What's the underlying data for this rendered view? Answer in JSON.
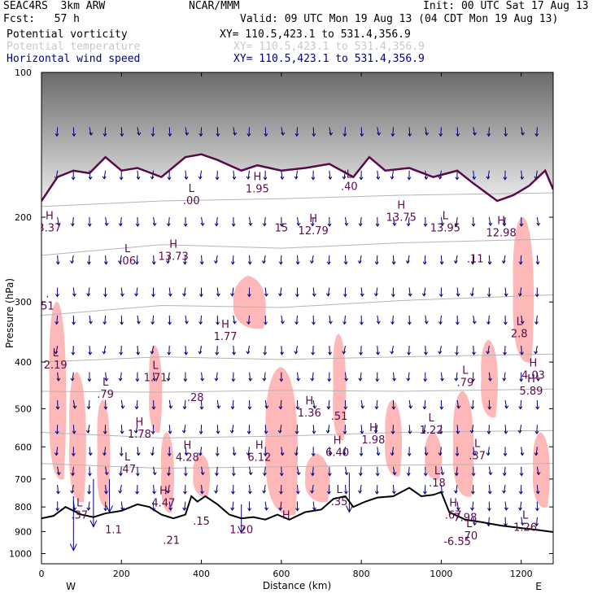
{
  "header": {
    "model": "SEAC4RS  3km ARW",
    "org": "NCAR/MMM",
    "init": "Init: 00 UTC Sat 17 Aug 13",
    "fcst": "Fcst:   57 h",
    "valid": "Valid: 09 UTC Mon 19 Aug 13 (04 CDT Mon 19 Aug 13)",
    "field1": "Potential vorticity",
    "field2": "Potential temperature",
    "field3": "Horizontal wind speed",
    "xy1": "XY= 110.5,423.1 to 531.4,356.9",
    "xy2": "XY= 110.5,423.1 to 531.4,356.9",
    "xy3": "XY= 110.5,423.1 to 531.4,356.9"
  },
  "colors": {
    "pv_fill": "#ffb8b8",
    "pv_contour": "#5a0a4a",
    "theta": "#b4b4b4",
    "wind": "#000080",
    "terrain": "#000000"
  },
  "chart_data": {
    "type": "cross-section",
    "xlabel": "Distance (km)",
    "ylabel": "Pressure (hPa)",
    "xlim": [
      0,
      1280
    ],
    "ylim": [
      1050,
      100
    ],
    "y_scale": "log-pressure",
    "x_ticks": [
      0,
      200,
      400,
      600,
      800,
      1000,
      1200
    ],
    "x_tick_labels": [
      "0",
      "200",
      "400",
      "600",
      "800",
      "1000",
      "1200"
    ],
    "y_ticks": [
      100,
      200,
      300,
      400,
      500,
      600,
      700,
      800,
      900,
      1000
    ],
    "y_tick_labels": [
      "100",
      "200",
      "300",
      "400",
      "500",
      "600",
      "700",
      "800",
      "900",
      "1000"
    ],
    "end_labels": {
      "left": "W",
      "right": "E"
    },
    "terrain_surface": [
      {
        "x": 0,
        "p": 845
      },
      {
        "x": 30,
        "p": 835
      },
      {
        "x": 60,
        "p": 800
      },
      {
        "x": 80,
        "p": 815
      },
      {
        "x": 100,
        "p": 830
      },
      {
        "x": 130,
        "p": 840
      },
      {
        "x": 160,
        "p": 825
      },
      {
        "x": 200,
        "p": 815
      },
      {
        "x": 240,
        "p": 790
      },
      {
        "x": 270,
        "p": 800
      },
      {
        "x": 300,
        "p": 830
      },
      {
        "x": 330,
        "p": 845
      },
      {
        "x": 360,
        "p": 830
      },
      {
        "x": 375,
        "p": 760
      },
      {
        "x": 390,
        "p": 780
      },
      {
        "x": 410,
        "p": 760
      },
      {
        "x": 440,
        "p": 790
      },
      {
        "x": 470,
        "p": 830
      },
      {
        "x": 500,
        "p": 845
      },
      {
        "x": 530,
        "p": 840
      },
      {
        "x": 560,
        "p": 850
      },
      {
        "x": 590,
        "p": 830
      },
      {
        "x": 620,
        "p": 850
      },
      {
        "x": 660,
        "p": 820
      },
      {
        "x": 700,
        "p": 810
      },
      {
        "x": 730,
        "p": 770
      },
      {
        "x": 760,
        "p": 760
      },
      {
        "x": 780,
        "p": 800
      },
      {
        "x": 810,
        "p": 780
      },
      {
        "x": 840,
        "p": 765
      },
      {
        "x": 880,
        "p": 760
      },
      {
        "x": 920,
        "p": 730
      },
      {
        "x": 950,
        "p": 760
      },
      {
        "x": 980,
        "p": 755
      },
      {
        "x": 1000,
        "p": 745
      },
      {
        "x": 1020,
        "p": 820
      },
      {
        "x": 1060,
        "p": 850
      },
      {
        "x": 1100,
        "p": 860
      },
      {
        "x": 1150,
        "p": 875
      },
      {
        "x": 1200,
        "p": 885
      },
      {
        "x": 1240,
        "p": 893
      },
      {
        "x": 1280,
        "p": 902
      }
    ],
    "tropopause_contour": [
      {
        "x": 0,
        "p": 185
      },
      {
        "x": 40,
        "p": 165
      },
      {
        "x": 80,
        "p": 160
      },
      {
        "x": 120,
        "p": 162
      },
      {
        "x": 160,
        "p": 150
      },
      {
        "x": 200,
        "p": 160
      },
      {
        "x": 240,
        "p": 158
      },
      {
        "x": 300,
        "p": 165
      },
      {
        "x": 360,
        "p": 150
      },
      {
        "x": 400,
        "p": 148
      },
      {
        "x": 440,
        "p": 152
      },
      {
        "x": 500,
        "p": 160
      },
      {
        "x": 540,
        "p": 156
      },
      {
        "x": 600,
        "p": 160
      },
      {
        "x": 660,
        "p": 158
      },
      {
        "x": 720,
        "p": 155
      },
      {
        "x": 780,
        "p": 165
      },
      {
        "x": 820,
        "p": 150
      },
      {
        "x": 860,
        "p": 160
      },
      {
        "x": 920,
        "p": 158
      },
      {
        "x": 980,
        "p": 165
      },
      {
        "x": 1040,
        "p": 160
      },
      {
        "x": 1080,
        "p": 170
      },
      {
        "x": 1140,
        "p": 185
      },
      {
        "x": 1180,
        "p": 180
      },
      {
        "x": 1220,
        "p": 172
      },
      {
        "x": 1260,
        "p": 160
      },
      {
        "x": 1280,
        "p": 175
      }
    ],
    "theta_isentropes": [
      [
        {
          "x": 0,
          "p": 190
        },
        {
          "x": 300,
          "p": 185
        },
        {
          "x": 600,
          "p": 183
        },
        {
          "x": 900,
          "p": 180
        },
        {
          "x": 1280,
          "p": 178
        }
      ],
      [
        {
          "x": 0,
          "p": 240
        },
        {
          "x": 300,
          "p": 228
        },
        {
          "x": 600,
          "p": 232
        },
        {
          "x": 900,
          "p": 226
        },
        {
          "x": 1280,
          "p": 222
        }
      ],
      [
        {
          "x": 0,
          "p": 320
        },
        {
          "x": 300,
          "p": 305
        },
        {
          "x": 600,
          "p": 308
        },
        {
          "x": 900,
          "p": 298
        },
        {
          "x": 1280,
          "p": 290
        }
      ],
      [
        {
          "x": 0,
          "p": 400
        },
        {
          "x": 300,
          "p": 390
        },
        {
          "x": 600,
          "p": 395
        },
        {
          "x": 900,
          "p": 390
        },
        {
          "x": 1280,
          "p": 385
        }
      ],
      [
        {
          "x": 0,
          "p": 460
        },
        {
          "x": 300,
          "p": 462
        },
        {
          "x": 600,
          "p": 458
        },
        {
          "x": 900,
          "p": 460
        },
        {
          "x": 1280,
          "p": 455
        }
      ],
      [
        {
          "x": 0,
          "p": 560
        },
        {
          "x": 300,
          "p": 575
        },
        {
          "x": 600,
          "p": 570
        },
        {
          "x": 900,
          "p": 560
        },
        {
          "x": 1280,
          "p": 555
        }
      ],
      [
        {
          "x": 0,
          "p": 650
        },
        {
          "x": 300,
          "p": 665
        },
        {
          "x": 600,
          "p": 660
        },
        {
          "x": 900,
          "p": 655
        },
        {
          "x": 1280,
          "p": 650
        }
      ]
    ],
    "pv_positive_regions": [
      {
        "x0": 20,
        "x1": 60,
        "p0": 300,
        "p1": 700
      },
      {
        "x0": 70,
        "x1": 110,
        "p0": 420,
        "p1": 780
      },
      {
        "x0": 140,
        "x1": 170,
        "p0": 480,
        "p1": 800
      },
      {
        "x0": 270,
        "x1": 300,
        "p0": 370,
        "p1": 560
      },
      {
        "x0": 300,
        "x1": 330,
        "p0": 560,
        "p1": 820
      },
      {
        "x0": 480,
        "x1": 560,
        "p0": 265,
        "p1": 340
      },
      {
        "x0": 560,
        "x1": 640,
        "p0": 410,
        "p1": 830
      },
      {
        "x0": 730,
        "x1": 760,
        "p0": 350,
        "p1": 580
      },
      {
        "x0": 860,
        "x1": 900,
        "p0": 480,
        "p1": 690
      },
      {
        "x0": 1030,
        "x1": 1080,
        "p0": 460,
        "p1": 760
      },
      {
        "x0": 1100,
        "x1": 1140,
        "p0": 360,
        "p1": 520
      },
      {
        "x0": 1180,
        "x1": 1230,
        "p0": 200,
        "p1": 400
      },
      {
        "x0": 1230,
        "x1": 1270,
        "p0": 560,
        "p1": 800
      },
      {
        "x0": 380,
        "x1": 420,
        "p0": 620,
        "p1": 760
      },
      {
        "x0": 660,
        "x1": 720,
        "p0": 620,
        "p1": 780
      },
      {
        "x0": 960,
        "x1": 1000,
        "p0": 560,
        "p1": 700
      }
    ],
    "hl_labels": [
      {
        "letter": "L",
        "value": ".00",
        "x": 375,
        "p": 180
      },
      {
        "letter": "H",
        "value": "1.95",
        "x": 540,
        "p": 170
      },
      {
        "letter": "L",
        "value": ".40",
        "x": 770,
        "p": 168
      },
      {
        "letter": "H",
        "value": "13.75",
        "x": 900,
        "p": 195
      },
      {
        "letter": "L",
        "value": "13.95",
        "x": 1010,
        "p": 205
      },
      {
        "letter": "H",
        "value": "12.98",
        "x": 1150,
        "p": 210
      },
      {
        "letter": "H",
        "value": "3.37",
        "x": 20,
        "p": 205
      },
      {
        "letter": "L",
        "value": ".06",
        "x": 215,
        "p": 240
      },
      {
        "letter": "H",
        "value": "13.73",
        "x": 330,
        "p": 235
      },
      {
        "letter": "",
        "value": "15",
        "x": 600,
        "p": 205
      },
      {
        "letter": "H",
        "value": "12.79",
        "x": 680,
        "p": 208
      },
      {
        "letter": "",
        "value": ".11",
        "x": 1085,
        "p": 238
      },
      {
        "letter": ".",
        "value": "51",
        "x": 15,
        "p": 298
      },
      {
        "letter": "H",
        "value": "1.77",
        "x": 460,
        "p": 345
      },
      {
        "letter": "L",
        "value": "2.8",
        "x": 1195,
        "p": 340
      },
      {
        "letter": "L",
        "value": "2.19",
        "x": 35,
        "p": 395
      },
      {
        "letter": "L",
        "value": "1.71",
        "x": 285,
        "p": 420
      },
      {
        "letter": "L",
        "value": ".79",
        "x": 1060,
        "p": 430
      },
      {
        "letter": "H",
        "value": "4.03",
        "x": 1230,
        "p": 415
      },
      {
        "letter": "L",
        "value": ".79",
        "x": 160,
        "p": 455
      },
      {
        "letter": "",
        "value": ".28",
        "x": 385,
        "p": 462
      },
      {
        "letter": "H",
        "value": "5.89",
        "x": 1225,
        "p": 448
      },
      {
        "letter": "H",
        "value": "1.36",
        "x": 670,
        "p": 497
      },
      {
        "letter": "",
        "value": ".51",
        "x": 745,
        "p": 505
      },
      {
        "letter": "L",
        "value": "1.22",
        "x": 975,
        "p": 540
      },
      {
        "letter": "H",
        "value": "1.78",
        "x": 245,
        "p": 550
      },
      {
        "letter": "H",
        "value": "1.98",
        "x": 830,
        "p": 565
      },
      {
        "letter": "H",
        "value": "4.28",
        "x": 365,
        "p": 615
      },
      {
        "letter": "H",
        "value": "6.12",
        "x": 545,
        "p": 615
      },
      {
        "letter": "H",
        "value": "6.40",
        "x": 740,
        "p": 600
      },
      {
        "letter": "L",
        "value": ".37",
        "x": 1090,
        "p": 610
      },
      {
        "letter": "L",
        "value": ".47",
        "x": 215,
        "p": 650
      },
      {
        "letter": "L",
        "value": ".18",
        "x": 990,
        "p": 695
      },
      {
        "letter": "H",
        "value": "4.47",
        "x": 305,
        "p": 765
      },
      {
        "letter": "L",
        "value": ".35",
        "x": 745,
        "p": 760
      },
      {
        "letter": "L",
        "value": ".37",
        "x": 95,
        "p": 810
      },
      {
        "letter": "H",
        "value": ".67",
        "x": 1030,
        "p": 810
      },
      {
        "letter": "",
        "value": "7.98",
        "x": 1060,
        "p": 820
      },
      {
        "letter": "",
        "value": ".15",
        "x": 400,
        "p": 835
      },
      {
        "letter": "L",
        "value": "1.26",
        "x": 1210,
        "p": 860
      },
      {
        "letter": "",
        "value": "1.1",
        "x": 180,
        "p": 870
      },
      {
        "letter": "",
        "value": "1.20",
        "x": 500,
        "p": 870
      },
      {
        "letter": "H",
        "value": "",
        "x": 612,
        "p": 860
      },
      {
        "letter": "L",
        "value": ".70",
        "x": 1070,
        "p": 895
      },
      {
        "letter": "",
        "value": "-6.55",
        "x": 1040,
        "p": 920
      },
      {
        "letter": "",
        "value": ".21",
        "x": 325,
        "p": 915
      }
    ]
  }
}
